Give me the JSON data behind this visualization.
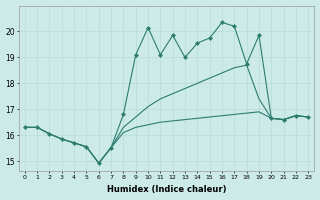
{
  "xlabel": "Humidex (Indice chaleur)",
  "ylabel": "",
  "background_color": "#cceae8",
  "line_color": "#2d7d6e",
  "xlim": [
    -0.5,
    23.5
  ],
  "ylim": [
    14.6,
    21.0
  ],
  "yticks": [
    15,
    16,
    17,
    18,
    19,
    20
  ],
  "xticks": [
    0,
    1,
    2,
    3,
    4,
    5,
    6,
    7,
    8,
    9,
    10,
    11,
    12,
    13,
    14,
    15,
    16,
    17,
    18,
    19,
    20,
    21,
    22,
    23
  ],
  "series": [
    {
      "x": [
        0,
        1,
        2,
        3,
        4,
        5,
        6,
        7,
        8,
        9,
        10,
        11,
        12,
        13,
        14,
        15,
        16,
        17,
        18,
        19,
        20,
        21,
        22,
        23
      ],
      "y": [
        16.3,
        16.3,
        16.05,
        15.85,
        15.7,
        15.55,
        14.92,
        15.52,
        16.1,
        16.3,
        16.4,
        16.5,
        16.55,
        16.6,
        16.65,
        16.7,
        16.75,
        16.8,
        16.85,
        16.9,
        16.65,
        16.6,
        16.75,
        16.7
      ],
      "has_markers": false
    },
    {
      "x": [
        0,
        1,
        2,
        3,
        4,
        5,
        6,
        7,
        8,
        9,
        10,
        11,
        12,
        13,
        14,
        15,
        16,
        17,
        18,
        19,
        20,
        21,
        22,
        23
      ],
      "y": [
        16.3,
        16.3,
        16.05,
        15.85,
        15.7,
        15.55,
        14.92,
        15.52,
        16.3,
        16.7,
        17.1,
        17.4,
        17.6,
        17.8,
        18.0,
        18.2,
        18.4,
        18.6,
        18.7,
        17.4,
        16.65,
        16.6,
        16.75,
        16.7
      ],
      "has_markers": false
    },
    {
      "x": [
        0,
        1,
        2,
        3,
        4,
        5,
        6,
        7,
        8,
        9,
        10,
        11,
        12,
        13,
        14,
        15,
        16,
        17,
        18,
        19,
        20,
        21,
        22,
        23
      ],
      "y": [
        16.3,
        16.3,
        16.05,
        15.85,
        15.7,
        15.55,
        14.92,
        15.52,
        16.8,
        19.1,
        20.15,
        19.1,
        19.85,
        19.0,
        19.55,
        19.75,
        20.35,
        20.2,
        18.75,
        19.85,
        16.65,
        16.6,
        16.75,
        16.7
      ],
      "has_markers": true
    }
  ]
}
